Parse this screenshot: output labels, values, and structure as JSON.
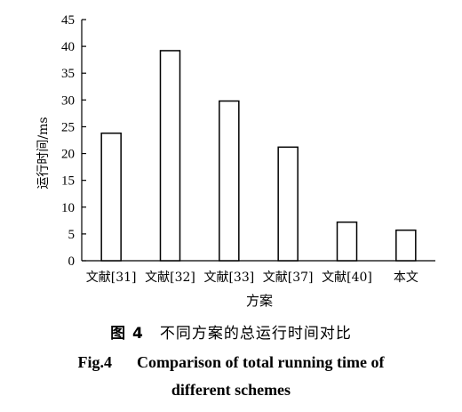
{
  "chart_data": {
    "type": "bar",
    "categories": [
      "文献[31]",
      "文献[32]",
      "文献[33]",
      "文献[37]",
      "文献[40]",
      "本文"
    ],
    "values": [
      23.8,
      39.2,
      29.8,
      21.2,
      7.2,
      5.7
    ],
    "xlabel": "方案",
    "ylabel": "运行时间/ms",
    "ylim": [
      0,
      45
    ],
    "yticks": [
      0,
      5,
      10,
      15,
      20,
      25,
      30,
      35,
      40,
      45
    ],
    "grid": false,
    "bar_fill": "#ffffff",
    "bar_stroke": "#000000"
  },
  "caption": {
    "cn_figure": "图 4",
    "cn_text": "不同方案的总运行时间对比",
    "en_figure": "Fig.4",
    "en_line1": "Comparison of total running time of",
    "en_line2": "different schemes"
  }
}
